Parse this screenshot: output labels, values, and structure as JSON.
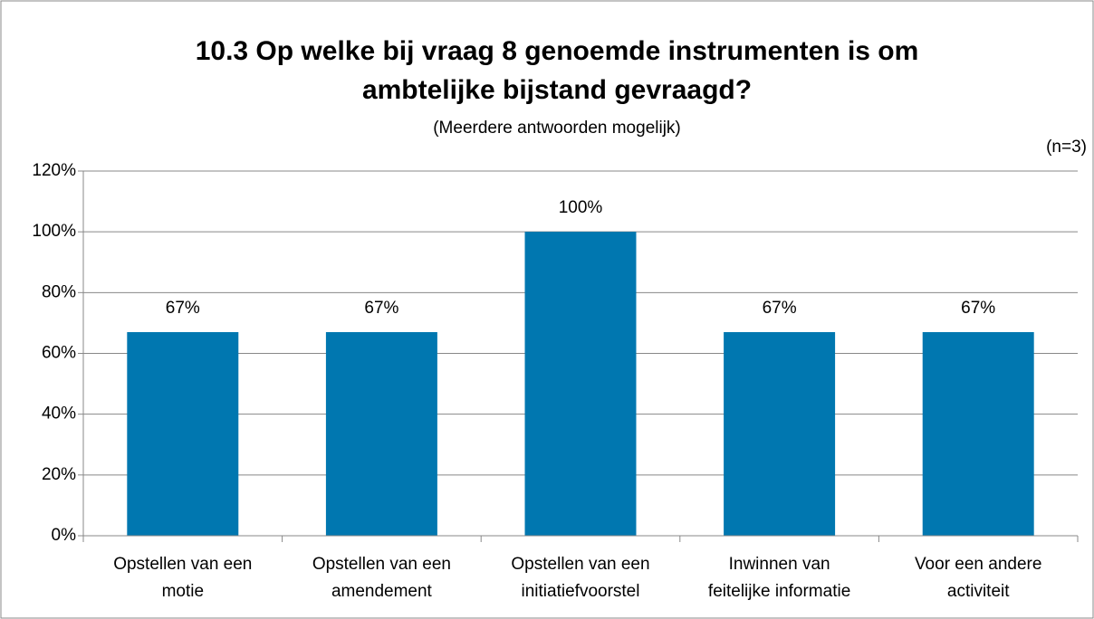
{
  "chart_data": {
    "type": "bar",
    "title": [
      "10.3 Op welke bij vraag 8 genoemde instrumenten is om",
      "ambtelijke bijstand gevraagd?"
    ],
    "subtitle": "(Meerdere antwoorden mogelijk)",
    "annotation": "(n=3)",
    "categories": [
      [
        "Opstellen van een",
        "motie"
      ],
      [
        "Opstellen van een",
        "amendement"
      ],
      [
        "Opstellen van een",
        "initiatiefvoorstel"
      ],
      [
        "Inwinnen van",
        "feitelijke informatie"
      ],
      [
        "Voor een andere",
        "activiteit"
      ]
    ],
    "values": [
      67,
      67,
      100,
      67,
      67
    ],
    "value_labels": [
      "67%",
      "67%",
      "100%",
      "67%",
      "67%"
    ],
    "color": "#0077b0",
    "ylim": [
      0,
      120
    ],
    "yticks": [
      {
        "value": 0,
        "label": "0%"
      },
      {
        "value": 20,
        "label": "20%"
      },
      {
        "value": 40,
        "label": "40%"
      },
      {
        "value": 60,
        "label": "60%"
      },
      {
        "value": 80,
        "label": "80%"
      },
      {
        "value": 100,
        "label": "100%"
      },
      {
        "value": 120,
        "label": "120%"
      }
    ],
    "grid": true
  }
}
